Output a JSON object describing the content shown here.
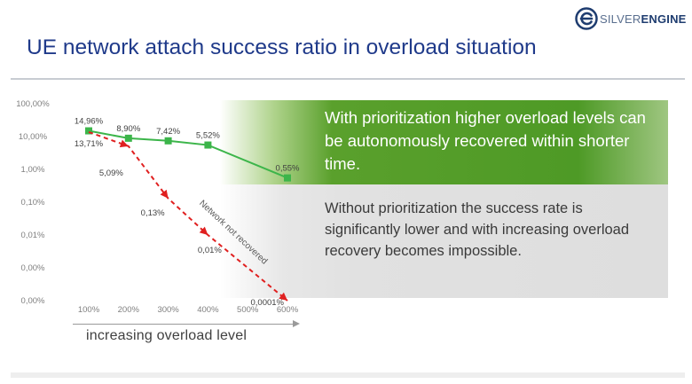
{
  "logo": {
    "word1": "SILVER",
    "word2": "ENGINE"
  },
  "title": "UE network attach success ratio in overload situation",
  "callout_green": "With prioritization higher overload levels can be autonomously recovered within shorter time.",
  "callout_grey": "Without prioritization the success rate is significantly lower and with increasing overload recovery becomes impossible.",
  "x_caption": "increasing overload level",
  "colors": {
    "title": "#1f3a8a",
    "green_series": "#3cb54a",
    "red_series": "#e02020",
    "green_band": "#4e9a26",
    "grey_band": "#dedede"
  },
  "chart_data": {
    "type": "line",
    "scale": "log",
    "categories": [
      "100%",
      "200%",
      "300%",
      "400%",
      "500%",
      "600%"
    ],
    "y_tick_labels": [
      "100,00%",
      "10,00%",
      "1,00%",
      "0,10%",
      "0,01%",
      "0,00%",
      "0,00%"
    ],
    "y_tick_values": [
      100,
      10,
      1,
      0.1,
      0.01,
      0.001,
      0.0001
    ],
    "series": [
      {
        "color": "#3cb54a",
        "points": [
          {
            "x": "100%",
            "y": 14.96,
            "label": "14,96%"
          },
          {
            "x": "200%",
            "y": 8.9,
            "label": "8,90%"
          },
          {
            "x": "300%",
            "y": 7.42,
            "label": "7,42%"
          },
          {
            "x": "400%",
            "y": 5.52,
            "label": "5,52%"
          },
          {
            "x": "600%",
            "y": 0.55,
            "label": "0,55%"
          }
        ]
      },
      {
        "color": "#e02020",
        "dashed": true,
        "points": [
          {
            "x": "100%",
            "y": 13.71,
            "label": "13,71%"
          },
          {
            "x": "200%",
            "y": 5.09,
            "label": "5,09%"
          },
          {
            "x": "300%",
            "y": 0.13,
            "label": "0,13%"
          },
          {
            "x": "400%",
            "y": 0.01,
            "label": "0,01%"
          },
          {
            "x": "600%",
            "y": 0.0001,
            "label": "0,0001%"
          }
        ]
      }
    ],
    "annotations": [
      {
        "text": "Network not recovered"
      }
    ]
  }
}
